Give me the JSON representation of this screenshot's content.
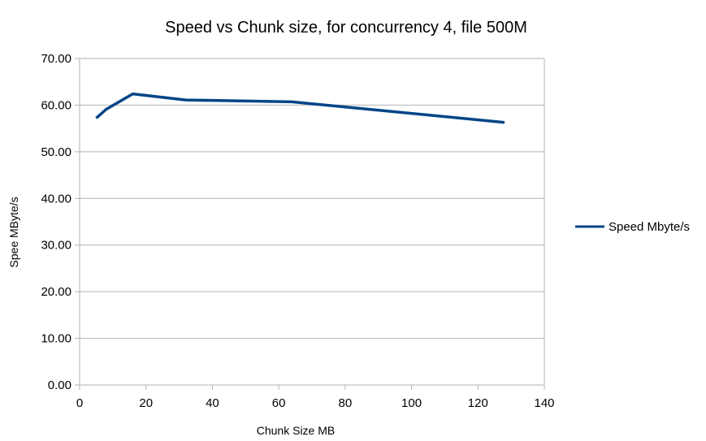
{
  "chart_data": {
    "type": "line",
    "title": "Speed vs Chunk size, for concurrency 4, file 500M",
    "xlabel": "Chunk Size MB",
    "ylabel": "Spee MByte/s",
    "xlim": [
      0,
      140
    ],
    "ylim": [
      0,
      70
    ],
    "xticks": [
      0,
      20,
      40,
      60,
      80,
      100,
      120,
      140
    ],
    "yticks": [
      0,
      10,
      20,
      30,
      40,
      50,
      60,
      70
    ],
    "xtick_labels": [
      "0",
      "20",
      "40",
      "60",
      "80",
      "100",
      "120",
      "140"
    ],
    "ytick_labels": [
      "0.00",
      "10.00",
      "20.00",
      "30.00",
      "40.00",
      "50.00",
      "60.00",
      "70.00"
    ],
    "grid": true,
    "legend_position": "right",
    "series": [
      {
        "name": "Speed Mbyte/s",
        "color": "#004586",
        "x": [
          5,
          8,
          16,
          32,
          64,
          128
        ],
        "y": [
          57.2,
          59.1,
          62.4,
          61.1,
          60.7,
          56.3
        ]
      }
    ]
  }
}
